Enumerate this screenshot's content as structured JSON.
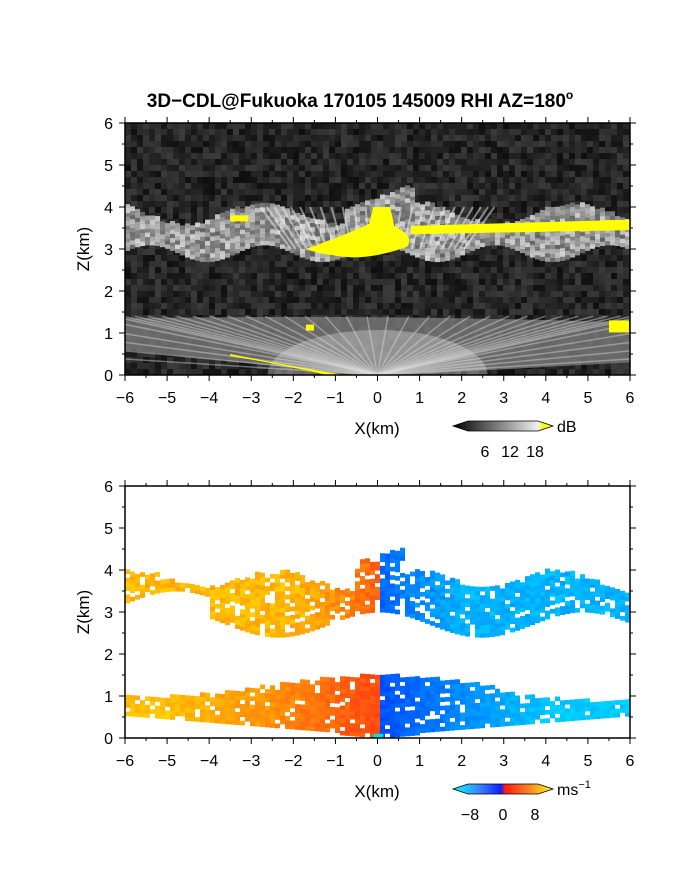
{
  "title": {
    "main": "3D−CDL@Fukuoka 170105 145009 RHI AZ=180",
    "degree": "o"
  },
  "colors": {
    "background_dark": "#1a1a1a",
    "highlight": "#ffff00",
    "velocity_negative": "#1f4dff",
    "velocity_positive": "#ff3b1a"
  },
  "chart_data": [
    {
      "type": "heatmap",
      "panel": "snr",
      "xlabel": "X(km)",
      "ylabel": "Z(km)",
      "xlim": [
        -6,
        6
      ],
      "ylim": [
        0,
        6
      ],
      "x_ticks": [
        -6,
        -5,
        -4,
        -3,
        -2,
        -1,
        0,
        1,
        2,
        3,
        4,
        5,
        6
      ],
      "y_ticks": [
        0,
        1,
        2,
        3,
        4,
        5,
        6
      ],
      "colorbar": {
        "label": "dB",
        "ticks": [
          6,
          12,
          18
        ],
        "range": [
          0,
          20
        ],
        "colormap": "grayscale-to-yellow"
      },
      "features": [
        {
          "name": "upper cloud layer",
          "x_range": [
            -6,
            6
          ],
          "z_range": [
            2.8,
            4.2
          ]
        },
        {
          "name": "lower aerosol layer",
          "x_range": [
            -6,
            6
          ],
          "z_range": [
            0,
            1.4
          ]
        }
      ]
    },
    {
      "type": "heatmap",
      "panel": "doppler_velocity",
      "xlabel": "X(km)",
      "ylabel": "Z(km)",
      "xlim": [
        -6,
        6
      ],
      "ylim": [
        0,
        6
      ],
      "x_ticks": [
        -6,
        -5,
        -4,
        -3,
        -2,
        -1,
        0,
        1,
        2,
        3,
        4,
        5,
        6
      ],
      "y_ticks": [
        0,
        1,
        2,
        3,
        4,
        5,
        6
      ],
      "colorbar": {
        "label": "ms",
        "label_exponent": "−1",
        "ticks": [
          "−8",
          "0",
          "8"
        ],
        "range": [
          -10,
          10
        ],
        "colormap": "cyan-blue-red-yellow"
      },
      "features": [
        {
          "name": "upper cloud layer",
          "x_range": [
            -6,
            6
          ],
          "z_range": [
            2.5,
            4.4
          ],
          "velocity_left": 6,
          "velocity_right": -6
        },
        {
          "name": "lower aerosol layer",
          "x_range": [
            -6,
            6
          ],
          "z_range": [
            0,
            1.5
          ],
          "velocity_left": 7,
          "velocity_right": -6
        }
      ]
    }
  ]
}
